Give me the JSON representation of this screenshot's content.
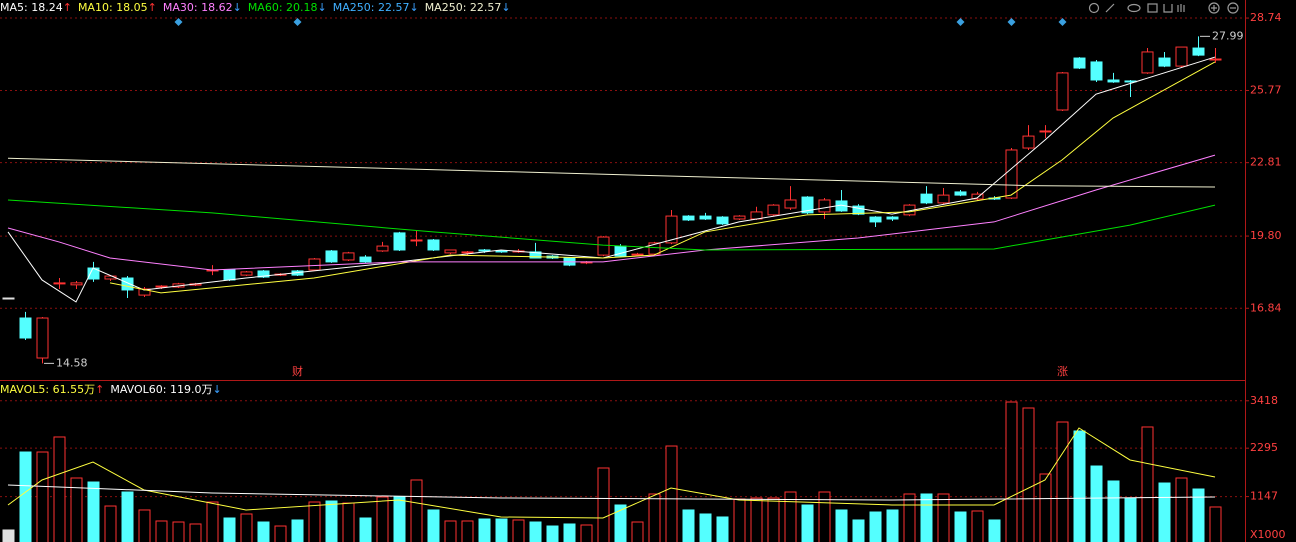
{
  "chart_data": [
    {
      "type": "candlestick",
      "open": [
        17.26,
        16.44,
        14.8,
        17.84,
        17.8,
        18.49,
        18.04,
        18.08,
        17.38,
        17.71,
        17.71,
        17.79,
        18.37,
        18.41,
        18.2,
        18.37,
        18.2,
        18.37,
        18.41,
        19.19,
        18.82,
        18.94,
        19.19,
        19.93,
        19.6,
        19.64,
        19.11,
        19.11,
        19.23,
        19.19,
        19.15,
        19.15,
        18.98,
        18.9,
        18.7,
        19.02,
        19.39,
        19.02,
        19.06,
        19.52,
        20.62,
        20.62,
        20.58,
        20.5,
        20.5,
        20.67,
        20.95,
        21.4,
        20.79,
        21.24,
        21.03,
        20.58,
        20.58,
        20.67,
        21.52,
        21.16,
        21.61,
        21.32,
        21.36,
        21.36,
        23.41,
        24.07,
        24.97,
        27.1,
        26.94,
        26.2,
        26.16,
        26.49,
        27.1,
        26.77,
        27.51,
        27.02
      ],
      "high": [
        17.26,
        16.69,
        16.48,
        18.08,
        17.96,
        18.74,
        18.2,
        18.16,
        17.71,
        17.79,
        17.88,
        17.88,
        18.61,
        18.45,
        18.37,
        18.41,
        18.28,
        18.41,
        18.9,
        19.23,
        19.15,
        19.02,
        19.56,
        19.97,
        20.05,
        19.68,
        19.23,
        19.19,
        19.27,
        19.23,
        19.27,
        19.52,
        19.02,
        18.94,
        18.78,
        19.8,
        19.47,
        19.11,
        19.56,
        20.87,
        20.66,
        20.75,
        20.62,
        20.66,
        21.0,
        21.11,
        21.85,
        21.44,
        21.36,
        21.69,
        21.11,
        20.62,
        20.62,
        21.11,
        21.85,
        21.77,
        21.69,
        21.61,
        21.44,
        23.41,
        24.35,
        24.35,
        26.53,
        27.14,
        27.02,
        26.49,
        26.2,
        27.51,
        27.35,
        27.55,
        27.99,
        27.51
      ],
      "low": [
        17.26,
        15.54,
        14.58,
        17.63,
        17.63,
        17.92,
        17.96,
        17.26,
        17.3,
        17.63,
        17.67,
        17.75,
        18.2,
        17.96,
        18.16,
        18.08,
        18.16,
        18.16,
        18.37,
        18.7,
        18.78,
        18.7,
        19.15,
        19.19,
        19.39,
        19.19,
        19.06,
        19.02,
        19.11,
        19.11,
        19.11,
        18.9,
        18.86,
        18.57,
        18.65,
        18.98,
        18.94,
        18.98,
        19.02,
        19.47,
        20.42,
        20.46,
        20.26,
        20.46,
        20.46,
        20.62,
        20.87,
        20.7,
        20.5,
        20.79,
        20.66,
        20.17,
        20.42,
        20.62,
        21.11,
        21.11,
        21.44,
        21.24,
        21.28,
        21.32,
        23.33,
        23.82,
        24.93,
        26.65,
        26.12,
        26.08,
        25.5,
        26.45,
        26.73,
        26.73,
        27.18,
        26.9
      ],
      "close": [
        17.26,
        15.62,
        16.44,
        17.88,
        17.88,
        18.04,
        18.16,
        17.59,
        17.63,
        17.75,
        17.84,
        17.84,
        18.41,
        18.0,
        18.33,
        18.12,
        18.24,
        18.2,
        18.86,
        18.74,
        19.11,
        18.74,
        19.39,
        19.23,
        19.64,
        19.23,
        19.23,
        19.15,
        19.19,
        19.15,
        19.19,
        18.9,
        18.9,
        18.61,
        18.74,
        19.76,
        18.98,
        19.06,
        19.52,
        20.62,
        20.46,
        20.5,
        20.3,
        20.62,
        20.79,
        21.07,
        21.28,
        20.75,
        21.28,
        20.83,
        20.7,
        20.38,
        20.5,
        21.07,
        21.16,
        21.48,
        21.48,
        21.52,
        21.32,
        23.33,
        23.9,
        24.11,
        26.49,
        26.69,
        26.2,
        26.12,
        26.12,
        27.35,
        26.77,
        27.55,
        27.22,
        27.06
      ],
      "up_color": "#ff3232",
      "down_color": "#54ffff",
      "flat_color": "#e0e0e0",
      "series": [
        {
          "name": "MA5: 18.24",
          "arrow": "↑",
          "color": "#ffffff",
          "x": [
            0,
            2,
            4,
            5,
            8,
            14,
            23,
            29,
            35,
            39,
            43,
            49,
            52,
            57,
            61,
            64,
            71
          ],
          "values": [
            19.97,
            18.0,
            17.1,
            18.49,
            17.59,
            18.08,
            18.74,
            19.23,
            18.9,
            19.64,
            20.38,
            21.07,
            20.7,
            21.36,
            23.74,
            25.62,
            27.14
          ]
        },
        {
          "name": "MA10: 18.05",
          "arrow": "↑",
          "color": "#ffff40",
          "x": [
            6,
            9,
            18,
            26,
            35,
            38,
            41,
            47,
            53,
            59,
            62,
            65,
            71
          ],
          "values": [
            17.88,
            17.47,
            18.08,
            19.02,
            18.9,
            19.02,
            19.97,
            20.67,
            20.79,
            21.48,
            22.92,
            24.64,
            26.94
          ]
        },
        {
          "name": "MA30: 18.62",
          "arrow": "↓",
          "color": "#ff80ff",
          "x": [
            0,
            3,
            6,
            12,
            23,
            35,
            41,
            50,
            58,
            64,
            71
          ],
          "values": [
            20.13,
            19.56,
            18.9,
            18.41,
            18.74,
            18.74,
            19.23,
            19.72,
            20.38,
            21.69,
            23.12
          ]
        },
        {
          "name": "MA60: 20.18",
          "arrow": "↓",
          "color": "#00e000",
          "x": [
            0,
            12,
            25,
            35,
            41,
            58,
            61,
            66,
            71
          ],
          "values": [
            21.28,
            20.75,
            19.97,
            19.43,
            19.23,
            19.27,
            19.64,
            20.25,
            21.07
          ]
        },
        {
          "name": "MA250: 22.57",
          "arrow": "↓",
          "color": "#40b0ff"
        },
        {
          "name": "MA250: 22.57",
          "arrow": "↓",
          "color": "#f0f0d0",
          "x": [
            0,
            60,
            71
          ],
          "values": [
            22.99,
            21.87,
            21.81
          ]
        }
      ],
      "markers": [
        10,
        17,
        56,
        59,
        62
      ],
      "events": [
        {
          "at": 17,
          "label": "财"
        },
        {
          "at": 62,
          "label": "涨"
        }
      ],
      "ylim": [
        13.98,
        29.07
      ],
      "yticks": [
        28.74,
        25.77,
        22.81,
        {
          "value": 19.8,
          "label": "19.80"
        },
        16.84
      ],
      "grid": true
    },
    {
      "type": "bar",
      "values": [
        356,
        2204,
        2204,
        2560,
        1588,
        1493,
        924,
        1256,
        830,
        569,
        545,
        498,
        1019,
        640,
        735,
        545,
        450,
        593,
        1019,
        1043,
        995,
        640,
        1138,
        1138,
        1541,
        830,
        569,
        569,
        616,
        616,
        593,
        545,
        450,
        498,
        474,
        1825,
        948,
        545,
        1209,
        2346,
        830,
        735,
        664,
        1090,
        1114,
        1114,
        1256,
        948,
        1256,
        830,
        593,
        782,
        830,
        1209,
        1209,
        1209,
        782,
        806,
        593,
        3389,
        3247,
        1683,
        2915,
        2702,
        1872,
        1517,
        1114,
        2797,
        1469,
        1588,
        1327,
        901
      ],
      "series": [
        {
          "name": "MAVOL5: 61.55万",
          "arrow": "↑",
          "color": "#ffff40",
          "x": [
            0,
            2,
            5,
            8,
            14,
            23,
            29,
            35,
            39,
            43,
            52,
            58,
            61,
            63,
            66,
            71
          ],
          "values": [
            948,
            1541,
            1967,
            1304,
            830,
            1067,
            664,
            640,
            1351,
            1067,
            948,
            948,
            1541,
            2773,
            2015,
            1612
          ]
        },
        {
          "name": "MAVOL60: 119.0万",
          "arrow": "↓",
          "color": "#ffffff",
          "x": [
            0,
            12,
            29,
            52,
            71
          ],
          "values": [
            1422,
            1232,
            1114,
            1067,
            1138
          ]
        }
      ],
      "unit": "X1000",
      "ylim": [
        0,
        3721
      ],
      "yticks": [
        3418,
        2295,
        1147
      ],
      "grid": true
    }
  ]
}
